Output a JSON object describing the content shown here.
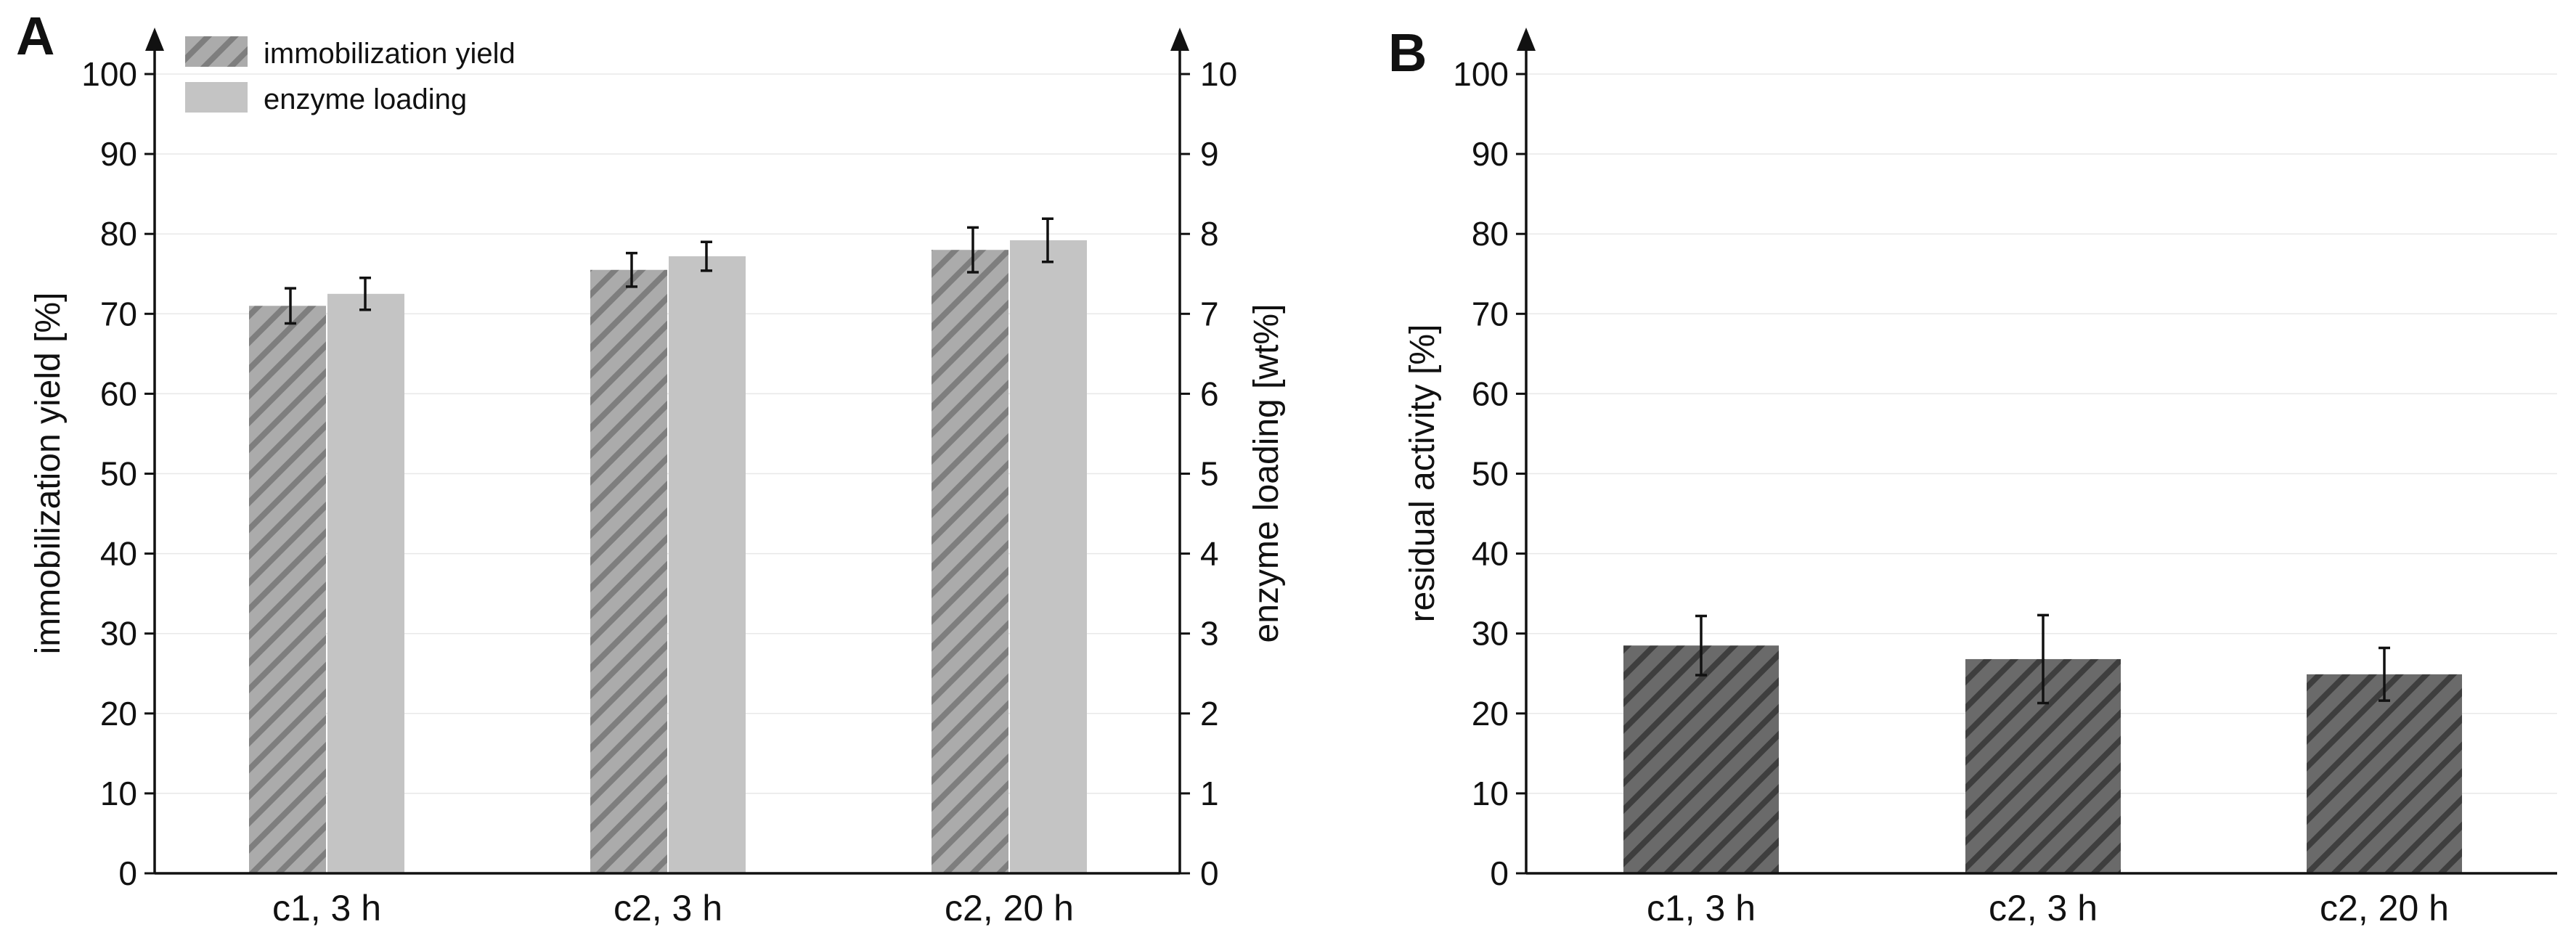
{
  "chart_data": [
    {
      "panel": "A",
      "type": "bar",
      "categories": [
        "c1, 3 h",
        "c2, 3 h",
        "c2, 20 h"
      ],
      "series": [
        {
          "name": "immobilization yield",
          "axis": "left",
          "pattern": "hatched",
          "color": "#9a9a9a",
          "values": [
            71.0,
            75.5,
            78.0
          ],
          "errors": [
            2.2,
            2.1,
            2.8
          ]
        },
        {
          "name": "enzyme loading",
          "axis": "right",
          "pattern": "solid",
          "color": "#c4c4c4",
          "values": [
            7.25,
            7.72,
            7.92
          ],
          "errors": [
            0.2,
            0.18,
            0.27
          ]
        }
      ],
      "ylabel_left": "immobilization yield [%]",
      "ylabel_right": "enzyme loading [wt%]",
      "ylim_left": [
        0,
        100
      ],
      "ylim_right": [
        0,
        10
      ],
      "yticks_left": [
        "0",
        "10",
        "20",
        "30",
        "40",
        "50",
        "60",
        "70",
        "80",
        "90",
        "100"
      ],
      "yticks_right": [
        "0",
        "1",
        "2",
        "3",
        "4",
        "5",
        "6",
        "7",
        "8",
        "9",
        "10"
      ],
      "legend_position": "top-left",
      "grid": true
    },
    {
      "panel": "B",
      "type": "bar",
      "categories": [
        "c1, 3 h",
        "c2, 3 h",
        "c2, 20 h"
      ],
      "series": [
        {
          "name": "residual activity",
          "axis": "left",
          "pattern": "hatched",
          "color": "#5a5a5a",
          "values": [
            28.5,
            26.8,
            24.9
          ],
          "errors": [
            3.7,
            5.5,
            3.3
          ]
        }
      ],
      "ylabel_left": "residual activity [%]",
      "ylim_left": [
        0,
        100
      ],
      "yticks_left": [
        "0",
        "10",
        "20",
        "30",
        "40",
        "50",
        "60",
        "70",
        "80",
        "90",
        "100"
      ],
      "grid": true
    }
  ]
}
